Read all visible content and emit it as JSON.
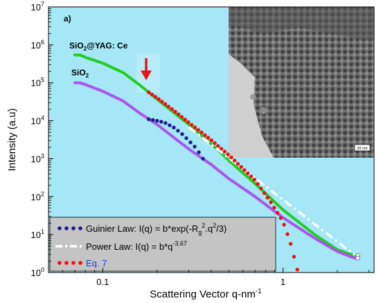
{
  "chart_data": {
    "type": "scatter",
    "panel_label": "a)",
    "xlabel": "Scattering Vector q-nm",
    "xlabel_sup": "-1",
    "ylabel": "Intensity (a.u)",
    "x_scale": "log",
    "y_scale": "log",
    "xlim": [
      0.05,
      3.2
    ],
    "ylim": [
      1,
      10000000
    ],
    "x_ticks": [
      0.1,
      1
    ],
    "x_tick_labels": [
      "0.1",
      "1"
    ],
    "y_ticks": [
      1,
      10,
      100,
      1000,
      10000,
      100000,
      1000000,
      10000000
    ],
    "y_tick_base": "10",
    "y_tick_exps": [
      "0",
      "1",
      "2",
      "3",
      "4",
      "5",
      "6",
      "7"
    ],
    "plot_background": "#a5e7f7",
    "grid": false,
    "sample_labels": {
      "yag_main": "SiO",
      "yag_sub": "2",
      "yag_rest": "@YAG: Ce",
      "sio2_main": "SiO",
      "sio2_sub": "2"
    },
    "inset_scale_bar": "20 nm",
    "series": [
      {
        "name": "SiO2@YAG: Ce",
        "color": "#22cc22",
        "points": [
          [
            0.07,
            540000
          ],
          [
            0.075,
            540000
          ],
          [
            0.08,
            470000
          ],
          [
            0.1,
            330000
          ],
          [
            0.13,
            185000
          ],
          [
            0.16,
            88000
          ],
          [
            0.2,
            37000
          ],
          [
            0.25,
            16000
          ],
          [
            0.3,
            8000
          ],
          [
            0.4,
            2500
          ],
          [
            0.5,
            900
          ],
          [
            0.7,
            220
          ],
          [
            1.0,
            45
          ],
          [
            1.5,
            10
          ],
          [
            2.0,
            4
          ],
          [
            2.5,
            2.8
          ],
          [
            2.6,
            2.8
          ]
        ]
      },
      {
        "name": "SiO2",
        "color": "#aa55ee",
        "points": [
          [
            0.07,
            100000
          ],
          [
            0.075,
            100000
          ],
          [
            0.08,
            90000
          ],
          [
            0.1,
            60000
          ],
          [
            0.13,
            33000
          ],
          [
            0.16,
            16000
          ],
          [
            0.2,
            8000
          ],
          [
            0.25,
            3500
          ],
          [
            0.3,
            1800
          ],
          [
            0.4,
            700
          ],
          [
            0.5,
            300
          ],
          [
            0.7,
            100
          ],
          [
            1.0,
            28
          ],
          [
            1.5,
            8
          ],
          [
            2.0,
            3.6
          ],
          [
            2.5,
            2.4
          ],
          [
            2.6,
            2.4
          ]
        ]
      },
      {
        "name": "Guinier Law: I(q) = b*exp(-Rg2.q2/3)",
        "color": "#1a1a8c",
        "points": [
          [
            0.18,
            11000
          ],
          [
            0.2,
            10000
          ],
          [
            0.22,
            9000
          ],
          [
            0.25,
            6500
          ],
          [
            0.28,
            4200
          ],
          [
            0.3,
            3000
          ],
          [
            0.33,
            1900
          ],
          [
            0.36,
            1000
          ]
        ]
      },
      {
        "name": "Power Law: I(q) = b*q-3.67",
        "color": "#ffffff",
        "points": [
          [
            0.3,
            6800
          ],
          [
            2.5,
            2.9
          ]
        ]
      },
      {
        "name": "Eq. 7",
        "color": "#ee1111",
        "points": [
          [
            0.18,
            56000
          ],
          [
            0.2,
            40000
          ],
          [
            0.25,
            18000
          ],
          [
            0.3,
            9000
          ],
          [
            0.4,
            3100
          ],
          [
            0.5,
            1250
          ],
          [
            0.7,
            270
          ],
          [
            0.85,
            75
          ],
          [
            1.0,
            22
          ],
          [
            1.1,
            6
          ],
          [
            1.2,
            1.2
          ]
        ]
      }
    ],
    "legend": [
      {
        "main": "Guinier Law: I(q) = b*exp(-R",
        "sub": "g",
        "mid": "",
        "sup1": "2",
        "rest": ".q",
        "sup2": "2",
        "end": "/3)"
      },
      {
        "main": "Power Law: I(q) = b*q",
        "sup1": "-3.67"
      },
      {
        "main": "Eq. 7"
      }
    ]
  }
}
